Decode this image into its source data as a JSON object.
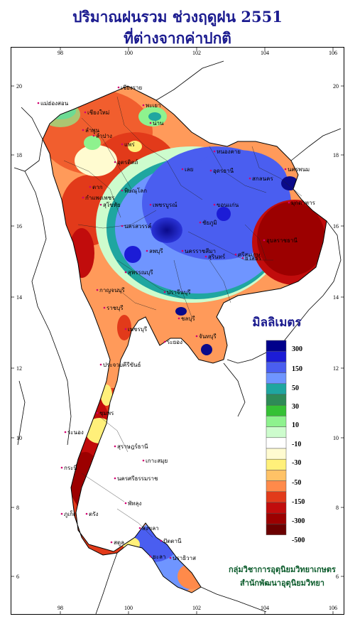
{
  "title": {
    "line1": "ปริมาณฝนรวม ช่วงฤดูฝน 2551",
    "line2": "ที่ต่างจากค่าปกติ"
  },
  "axes": {
    "x_ticks": [
      "98",
      "100",
      "102",
      "104",
      "106"
    ],
    "y_ticks": [
      "20",
      "18",
      "16",
      "14",
      "12",
      "10",
      "8",
      "6"
    ]
  },
  "legend": {
    "title": "มิลลิเมตร",
    "colors": [
      "#00008b",
      "#1c1cd6",
      "#4a5ef0",
      "#6f95ff",
      "#1fa6a0",
      "#2e8b57",
      "#35c135",
      "#8ef28e",
      "#cdfccd",
      "#ffffff",
      "#fffbd0",
      "#fff07a",
      "#ffc266",
      "#ff8a4a",
      "#e23a1a",
      "#c10c0c",
      "#9c0000",
      "#6b0000"
    ],
    "labels": [
      "300",
      "150",
      "50",
      "30",
      "10",
      "-10",
      "-30",
      "-50",
      "-150",
      "-300",
      "-500"
    ]
  },
  "places": [
    "เชียงราย",
    "เชียงใหม่",
    "ลำพูน",
    "ลำปาง",
    "แพร่",
    "แม่ฮ่องสอน",
    "น่าน",
    "พะเยา",
    "อุตรดิตถ์",
    "ตาก",
    "กำแพงเพชร",
    "พิษณุโลก",
    "สุโขทัย",
    "เพชรบูรณ์",
    "เลย",
    "หนองคาย",
    "อุดรธานี",
    "สกลนคร",
    "นครพนม",
    "มุกดาหาร",
    "ขอนแก่น",
    "ชัยภูมิ",
    "นครสวรรค์",
    "ลพบุรี",
    "สุพรรณบุรี",
    "กาญจนบุรี",
    "ราชบุรี",
    "นครราชสีมา",
    "สุรินทร์",
    "ศรีสะเกษ",
    "อุบลราชธานี",
    "ยโสธร",
    "ปราจีนบุรี",
    "ชลบุรี",
    "ระยอง",
    "จันทบุรี",
    "เพชรบุรี",
    "ประจวบคีรีขันธ์",
    "ชุมพร",
    "ระนอง",
    "สุราษฎร์ธานี",
    "นครศรีธรรมราช",
    "กระบี่",
    "ภูเก็ต",
    "ตรัง",
    "พัทลุง",
    "สงขลา",
    "สตูล",
    "ปัตตานี",
    "นราธิวาส",
    "ยะลา",
    "เกาะสมุย"
  ],
  "credit": {
    "line1": "กลุ่มวิชาการอุตุนิยมวิทยาเกษตร",
    "line2": "สำนักพัฒนาอุตุนิยมวิทยา"
  }
}
